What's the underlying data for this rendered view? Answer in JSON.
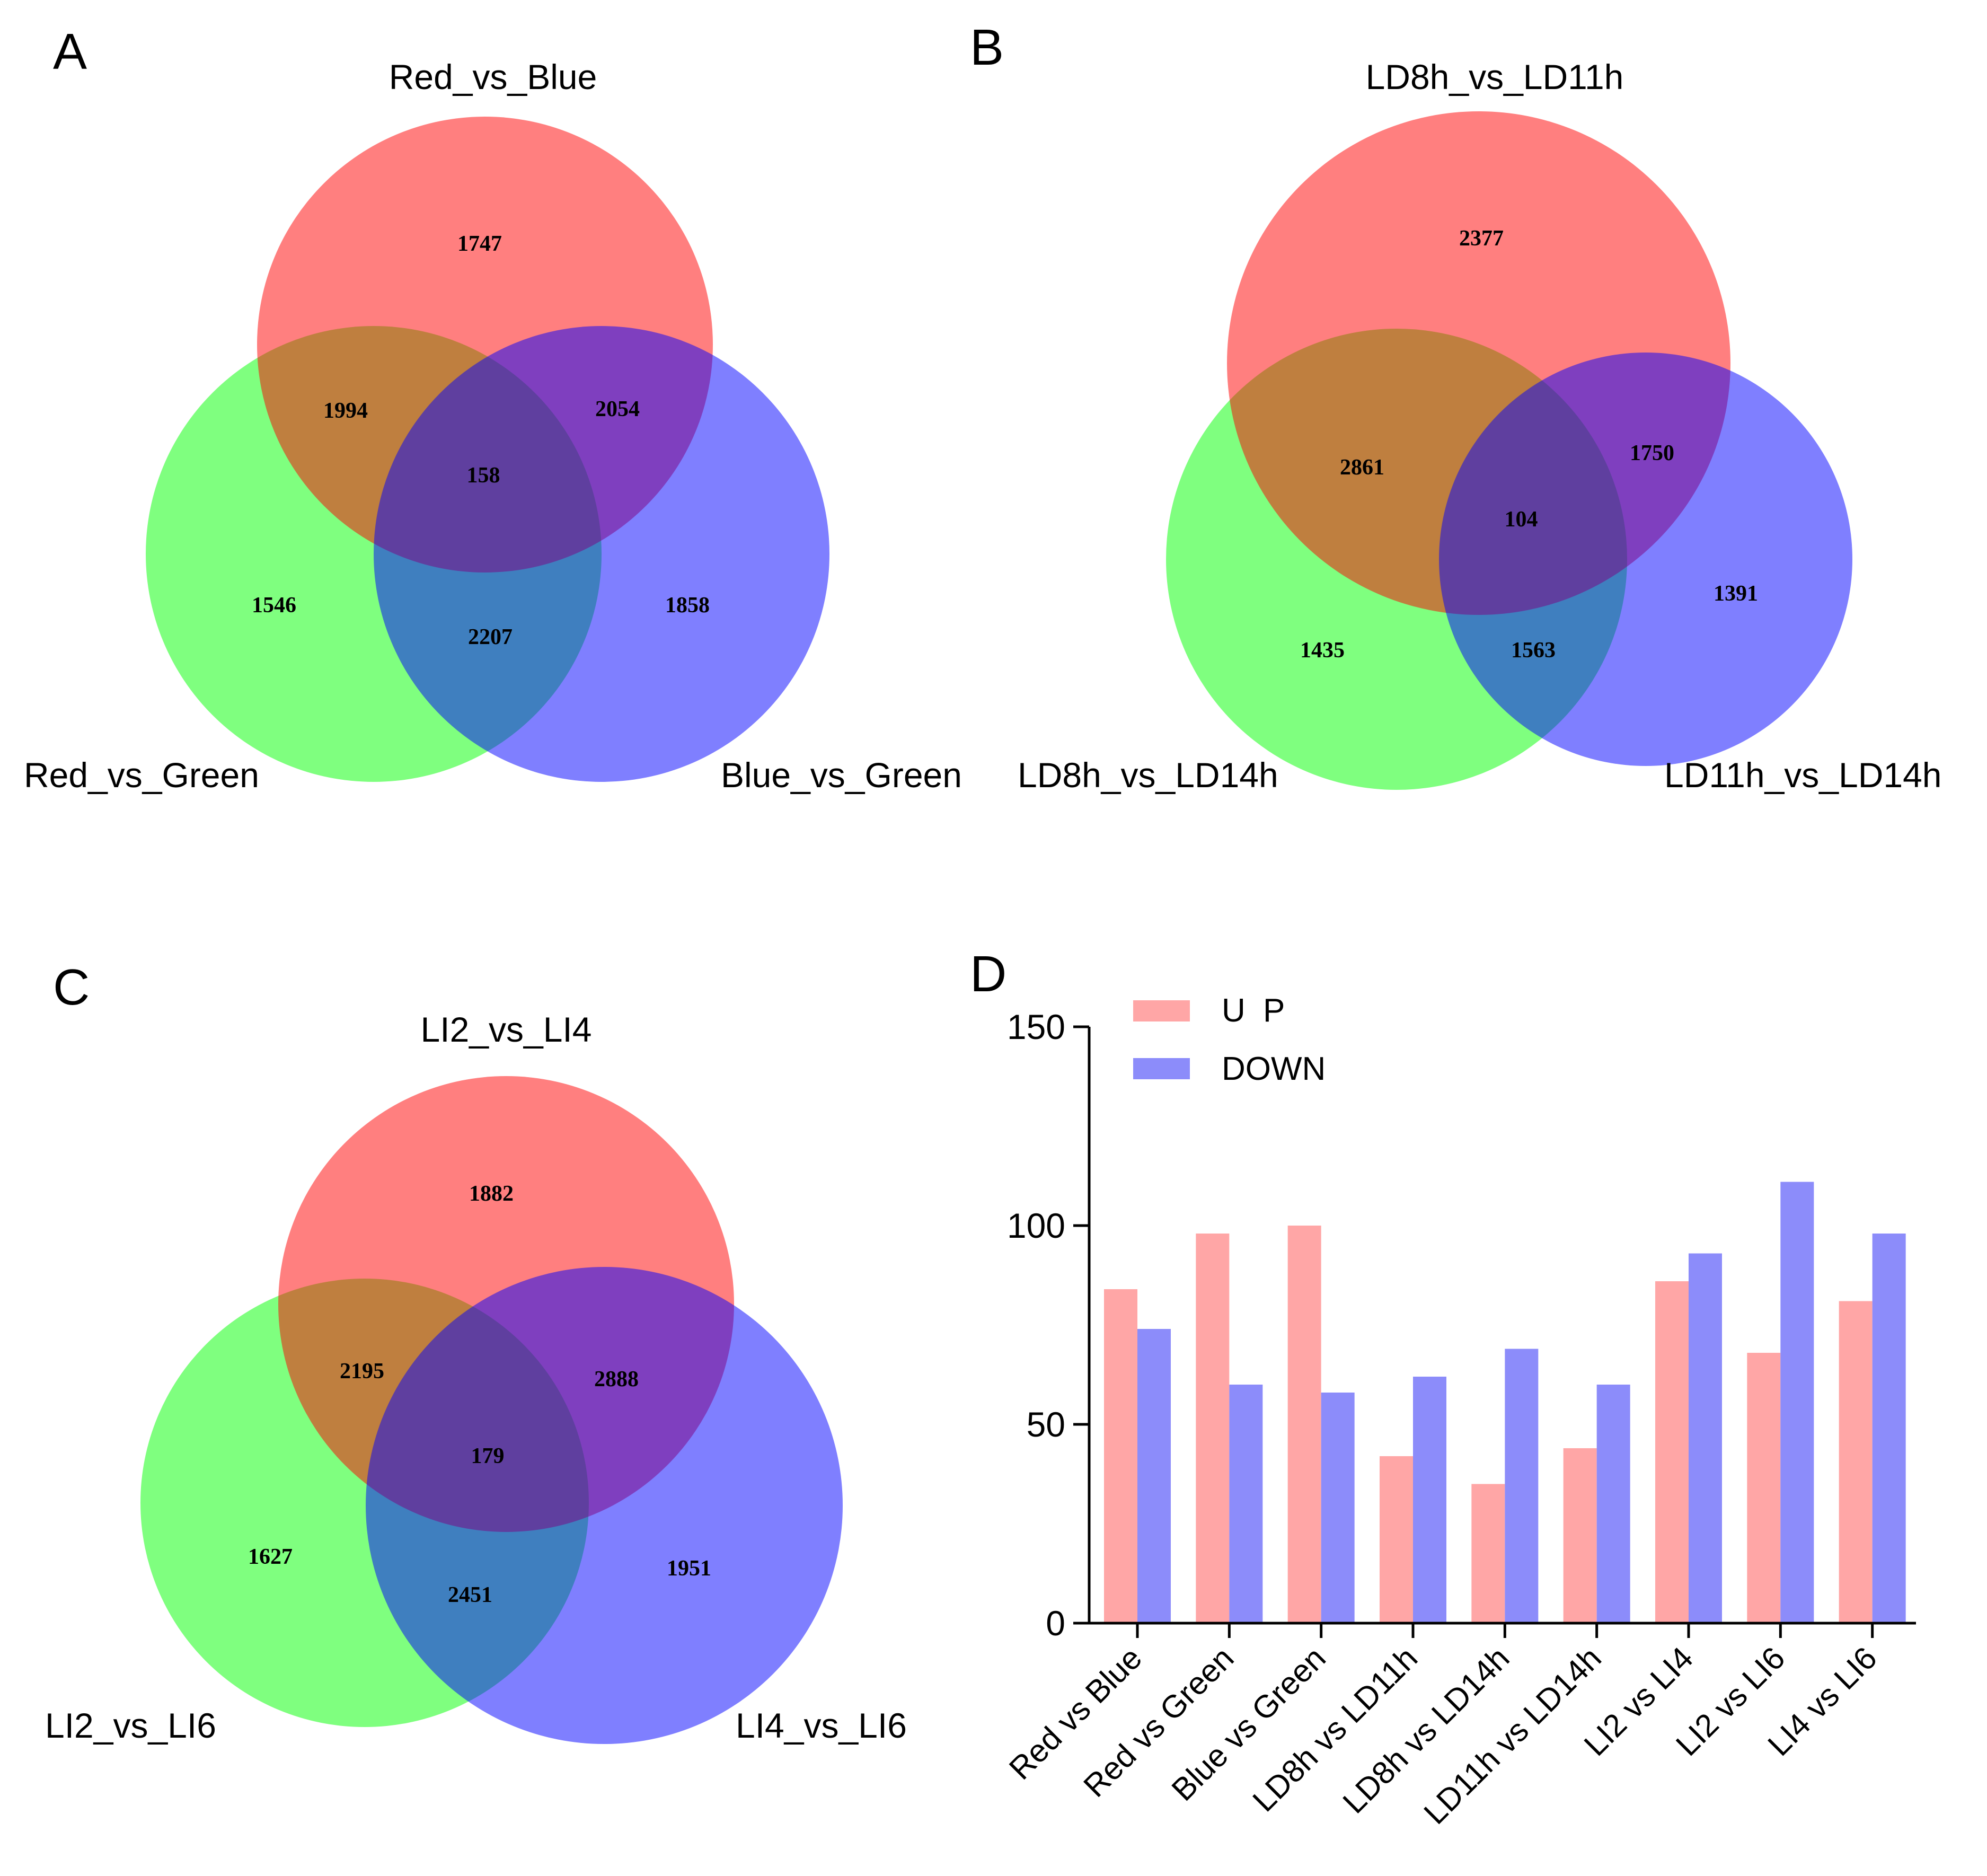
{
  "colors": {
    "red": "#ff0000",
    "green": "#00ff00",
    "blue": "#0000ff",
    "bar_up": "#ffa6a6",
    "bar_down": "#8c8cfa"
  },
  "venns": [
    {
      "panel": "A",
      "top_label": "Red_vs_Blue",
      "left_label": "Red_vs_Green",
      "right_label": "Blue_vs_Green",
      "counts": {
        "top_only": "1747",
        "top_left": "1994",
        "top_right": "2054",
        "center": "158",
        "left_only": "1546",
        "right_only": "1858",
        "left_right": "2207"
      }
    },
    {
      "panel": "B",
      "top_label": "LD8h_vs_LD11h",
      "left_label": "LD8h_vs_LD14h",
      "right_label": "LD11h_vs_LD14h",
      "counts": {
        "top_only": "2377",
        "top_left": "2861",
        "top_right": "1750",
        "center": "104",
        "left_only": "1435",
        "right_only": "1391",
        "left_right": "1563"
      }
    },
    {
      "panel": "C",
      "top_label": "LI2_vs_LI4",
      "left_label": "LI2_vs_LI6",
      "right_label": "LI4_vs_LI6",
      "counts": {
        "top_only": "1882",
        "top_left": "2195",
        "top_right": "2888",
        "center": "179",
        "left_only": "1627",
        "right_only": "1951",
        "left_right": "2451"
      }
    }
  ],
  "chart_data": {
    "panel": "D",
    "type": "bar",
    "categories": [
      "Red vs Blue",
      "Red vs Green",
      "Blue vs Green",
      "LD8h vs LD11h",
      "LD8h vs LD14h",
      "LD11h vs LD14h",
      "LI2 vs LI4",
      "LI2 vs LI6",
      "LI4 vs LI6"
    ],
    "series": [
      {
        "name": "U P",
        "values": [
          84,
          98,
          100,
          42,
          35,
          44,
          86,
          68,
          81
        ]
      },
      {
        "name": "DOWN",
        "values": [
          74,
          60,
          58,
          62,
          69,
          60,
          93,
          111,
          98
        ]
      }
    ],
    "yticks": [
      "0",
      "50",
      "100",
      "150"
    ],
    "ylim": [
      0,
      150
    ],
    "legend_position": "top-left"
  }
}
